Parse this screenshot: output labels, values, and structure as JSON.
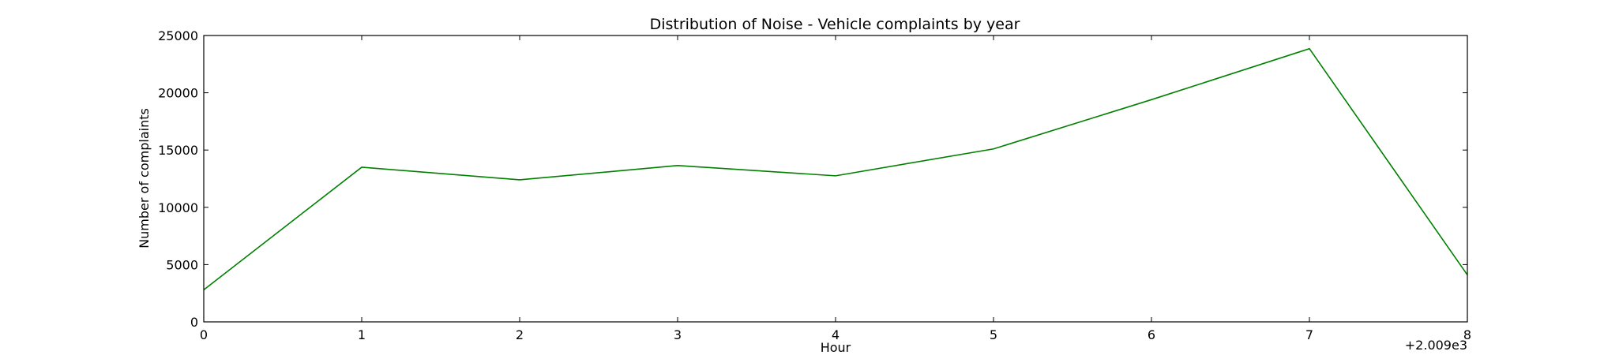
{
  "chart_data": {
    "type": "line",
    "title": "Distribution of  Noise - Vehicle complaints by year",
    "xlabel": "Hour",
    "ylabel": "Number of complaints",
    "x_offset_label": "+2.009e3",
    "xlim": [
      0,
      8
    ],
    "ylim": [
      0,
      25000
    ],
    "x_ticks": [
      "0",
      "1",
      "2",
      "3",
      "4",
      "5",
      "6",
      "7",
      "8"
    ],
    "y_ticks": [
      "0",
      "5000",
      "10000",
      "15000",
      "20000",
      "25000"
    ],
    "grid": false,
    "legend": "none",
    "series": [
      {
        "color": "#008000",
        "x": [
          0,
          1,
          2,
          3,
          4,
          5,
          6,
          7,
          8
        ],
        "y": [
          2800,
          13500,
          12400,
          13650,
          12750,
          15100,
          19400,
          23850,
          4100
        ]
      }
    ]
  }
}
